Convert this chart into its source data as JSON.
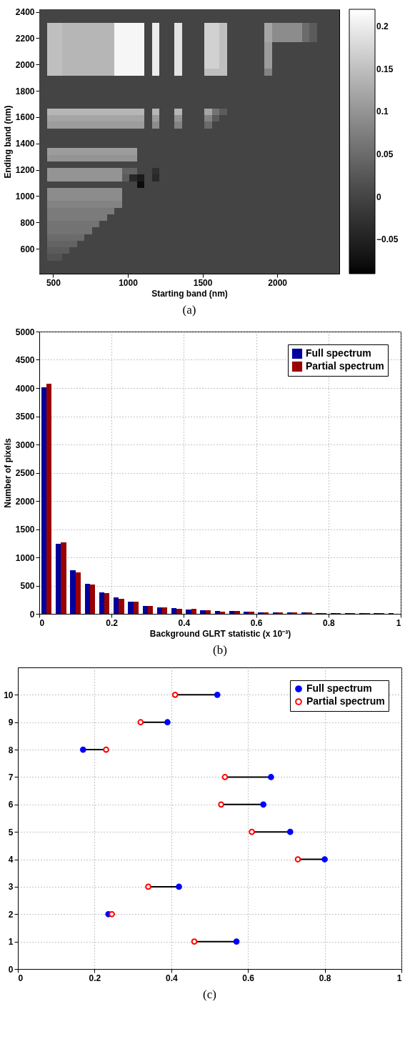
{
  "chart_data": [
    {
      "type": "heatmap",
      "xlabel": "Starting band (nm)",
      "ylabel": "Ending band (nm)",
      "annotations": [
        "(a)"
      ],
      "xlim": [
        407,
        2415
      ],
      "ylim": [
        410,
        2420
      ],
      "xticks": [
        500,
        1000,
        1500,
        2000
      ],
      "yticks": [
        600,
        800,
        1000,
        1200,
        1400,
        1600,
        1800,
        2000,
        2200,
        2400
      ],
      "clim": [
        -0.09,
        0.22
      ],
      "cticks": [
        {
          "value": -0.05,
          "label": "−0.05"
        },
        0,
        0.05,
        0.1,
        0.15,
        0.2
      ],
      "cells": [
        [
          0,
          0,
          0,
          0,
          0,
          0,
          0,
          0,
          0,
          0,
          0,
          0,
          0,
          0,
          0,
          0,
          0,
          0,
          0,
          0,
          0,
          0,
          0,
          0,
          0,
          0,
          0,
          0,
          0,
          0,
          0,
          0,
          0,
          0,
          0,
          0,
          0,
          0,
          0,
          0
        ],
        [
          0,
          0,
          0,
          0,
          0,
          0,
          0,
          0,
          0,
          0,
          0,
          0,
          0,
          0,
          0,
          0,
          0,
          0,
          0,
          0,
          0,
          0,
          0,
          0,
          0,
          0,
          0,
          0,
          0,
          0,
          0,
          0,
          0,
          0,
          0,
          0,
          0,
          0,
          0,
          0
        ],
        [
          0,
          0.15,
          0.15,
          0.14,
          0.14,
          0.14,
          0.14,
          0.14,
          0.14,
          0.14,
          0.21,
          0.21,
          0.21,
          0.21,
          0,
          0.2,
          0,
          0,
          0.19,
          0,
          0,
          0,
          0.17,
          0.17,
          0.15,
          0,
          0,
          0,
          0,
          0,
          0.12,
          0.09,
          0.09,
          0.09,
          0.09,
          0.05,
          0.03,
          0,
          0,
          0
        ],
        [
          0,
          0.15,
          0.15,
          0.14,
          0.14,
          0.14,
          0.14,
          0.14,
          0.14,
          0.14,
          0.21,
          0.21,
          0.21,
          0.21,
          0,
          0.2,
          0,
          0,
          0.19,
          0,
          0,
          0,
          0.17,
          0.17,
          0.15,
          0,
          0,
          0,
          0,
          0,
          0.12,
          0.09,
          0.09,
          0.09,
          0.09,
          0.05,
          0.03,
          0,
          0,
          0
        ],
        [
          0,
          0.15,
          0.15,
          0.14,
          0.14,
          0.14,
          0.14,
          0.14,
          0.14,
          0.14,
          0.21,
          0.21,
          0.21,
          0.21,
          0,
          0.2,
          0,
          0,
          0.19,
          0,
          0,
          0,
          0.17,
          0.17,
          0.15,
          0,
          0,
          0,
          0,
          0,
          0.12,
          0.09,
          0.09,
          0.09,
          0.09,
          0.05,
          0.03,
          0,
          0,
          0
        ],
        [
          0,
          0.15,
          0.15,
          0.14,
          0.14,
          0.14,
          0.14,
          0.14,
          0.14,
          0.14,
          0.21,
          0.21,
          0.21,
          0.21,
          0,
          0.2,
          0,
          0,
          0.19,
          0,
          0,
          0,
          0.17,
          0.17,
          0.15,
          0,
          0,
          0,
          0,
          0,
          0.11,
          0,
          0,
          0,
          0,
          0,
          0,
          0,
          0,
          0
        ],
        [
          0,
          0.15,
          0.15,
          0.14,
          0.14,
          0.14,
          0.14,
          0.14,
          0.14,
          0.14,
          0.21,
          0.21,
          0.21,
          0.21,
          0,
          0.2,
          0,
          0,
          0.19,
          0,
          0,
          0,
          0.17,
          0.17,
          0.15,
          0,
          0,
          0,
          0,
          0,
          0.11,
          0,
          0,
          0,
          0,
          0,
          0,
          0,
          0,
          0
        ],
        [
          0,
          0.15,
          0.15,
          0.14,
          0.14,
          0.14,
          0.14,
          0.14,
          0.14,
          0.14,
          0.21,
          0.21,
          0.21,
          0.21,
          0,
          0.2,
          0,
          0,
          0.19,
          0,
          0,
          0,
          0.17,
          0.17,
          0.15,
          0,
          0,
          0,
          0,
          0,
          0.11,
          0,
          0,
          0,
          0,
          0,
          0,
          0,
          0,
          0
        ],
        [
          0,
          0.15,
          0.15,
          0.14,
          0.14,
          0.14,
          0.14,
          0.14,
          0.14,
          0.14,
          0.21,
          0.21,
          0.21,
          0.21,
          0,
          0.2,
          0,
          0,
          0.19,
          0,
          0,
          0,
          0.17,
          0.17,
          0.15,
          0,
          0,
          0,
          0,
          0,
          0.11,
          0,
          0,
          0,
          0,
          0,
          0,
          0,
          0,
          0
        ],
        [
          0,
          0.15,
          0.15,
          0.14,
          0.14,
          0.14,
          0.14,
          0.14,
          0.14,
          0.14,
          0.21,
          0.21,
          0.21,
          0.21,
          0,
          0.2,
          0,
          0,
          0.19,
          0,
          0,
          0,
          0.15,
          0.15,
          0.15,
          0,
          0,
          0,
          0,
          0,
          0.08,
          0,
          0,
          0,
          0,
          0,
          0,
          0,
          0,
          0
        ],
        [
          0,
          0,
          0,
          0,
          0,
          0,
          0,
          0,
          0,
          0,
          0,
          0,
          0,
          0,
          0,
          0,
          0,
          0,
          0,
          0,
          0,
          0,
          0,
          0,
          0,
          0,
          0,
          0,
          0,
          0,
          0,
          0,
          0,
          0,
          0,
          0,
          0,
          0,
          0,
          0
        ],
        [
          0,
          0,
          0,
          0,
          0,
          0,
          0,
          0,
          0,
          0,
          0,
          0,
          0,
          0,
          0,
          0,
          0,
          0,
          0,
          0,
          0,
          0,
          0,
          0,
          0,
          0,
          0,
          0,
          0,
          0,
          0,
          0,
          0,
          0,
          0,
          0,
          0,
          0,
          0,
          0
        ],
        [
          0,
          0,
          0,
          0,
          0,
          0,
          0,
          0,
          0,
          0,
          0,
          0,
          0,
          0,
          0,
          0,
          0,
          0,
          0,
          0,
          0,
          0,
          0,
          0,
          0,
          0,
          0,
          0,
          0,
          0,
          0,
          0,
          0,
          0,
          0,
          0,
          0,
          0,
          0,
          0
        ],
        [
          0,
          0,
          0,
          0,
          0,
          0,
          0,
          0,
          0,
          0,
          0,
          0,
          0,
          0,
          0,
          0,
          0,
          0,
          0,
          0,
          0,
          0,
          0,
          0,
          0,
          0,
          0,
          0,
          0,
          0,
          0,
          0,
          0,
          0,
          0,
          0,
          0,
          0,
          0,
          0
        ],
        [
          0,
          0,
          0,
          0,
          0,
          0,
          0,
          0,
          0,
          0,
          0,
          0,
          0,
          0,
          0,
          0,
          0,
          0,
          0,
          0,
          0,
          0,
          0,
          0,
          0,
          0,
          0,
          0,
          0,
          0,
          0,
          0,
          0,
          0,
          0,
          0,
          0,
          0,
          0,
          0
        ],
        [
          0,
          0.14,
          0.14,
          0.14,
          0.14,
          0.14,
          0.14,
          0.14,
          0.14,
          0.14,
          0.14,
          0.14,
          0.14,
          0.14,
          0,
          0.14,
          0,
          0,
          0.14,
          0,
          0,
          0,
          0.12,
          0.06,
          0.03,
          0,
          0,
          0,
          0,
          0,
          0,
          0,
          0,
          0,
          0,
          0,
          0,
          0,
          0,
          0
        ],
        [
          0,
          0.12,
          0.12,
          0.12,
          0.12,
          0.12,
          0.12,
          0.12,
          0.12,
          0.12,
          0.12,
          0.12,
          0.12,
          0.12,
          0,
          0.11,
          0,
          0,
          0.1,
          0,
          0,
          0,
          0.08,
          0.03,
          0,
          0,
          0,
          0,
          0,
          0,
          0,
          0,
          0,
          0,
          0,
          0,
          0,
          0,
          0,
          0
        ],
        [
          0,
          0.11,
          0.11,
          0.11,
          0.11,
          0.11,
          0.11,
          0.11,
          0.11,
          0.11,
          0.11,
          0.11,
          0.11,
          0.11,
          0,
          0.09,
          0,
          0,
          0.08,
          0,
          0,
          0,
          0.05,
          0,
          0,
          0,
          0,
          0,
          0,
          0,
          0,
          0,
          0,
          0,
          0,
          0,
          0,
          0,
          0,
          0
        ],
        [
          0,
          0,
          0,
          0,
          0,
          0,
          0,
          0,
          0,
          0,
          0,
          0,
          0,
          0,
          0,
          0,
          0,
          0,
          0,
          0,
          0,
          0,
          0,
          0,
          0,
          0,
          0,
          0,
          0,
          0,
          0,
          0,
          0,
          0,
          0,
          0,
          0,
          0,
          0,
          0
        ],
        [
          0,
          0,
          0,
          0,
          0,
          0,
          0,
          0,
          0,
          0,
          0,
          0,
          0,
          0,
          0,
          0,
          0,
          0,
          0,
          0,
          0,
          0,
          0,
          0,
          0,
          0,
          0,
          0,
          0,
          0,
          0,
          0,
          0,
          0,
          0,
          0,
          0,
          0,
          0,
          0
        ],
        [
          0,
          0,
          0,
          0,
          0,
          0,
          0,
          0,
          0,
          0,
          0,
          0,
          0,
          0,
          0,
          0,
          0,
          0,
          0,
          0,
          0,
          0,
          0,
          0,
          0,
          0,
          0,
          0,
          0,
          0,
          0,
          0,
          0,
          0,
          0,
          0,
          0,
          0,
          0,
          0
        ],
        [
          0,
          0.11,
          0.11,
          0.11,
          0.11,
          0.11,
          0.11,
          0.11,
          0.11,
          0.11,
          0.11,
          0.11,
          0.11,
          0,
          0,
          0,
          0,
          0,
          0,
          0,
          0,
          0,
          0,
          0,
          0,
          0,
          0,
          0,
          0,
          0,
          0,
          0,
          0,
          0,
          0,
          0,
          0,
          0,
          0,
          0
        ],
        [
          0,
          0.1,
          0.1,
          0.1,
          0.1,
          0.1,
          0.1,
          0.1,
          0.1,
          0.1,
          0.1,
          0.1,
          0.1,
          0,
          0,
          0,
          0,
          0,
          0,
          0,
          0,
          0,
          0,
          0,
          0,
          0,
          0,
          0,
          0,
          0,
          0,
          0,
          0,
          0,
          0,
          0,
          0,
          0,
          0,
          0
        ],
        [
          0,
          0,
          0,
          0,
          0,
          0,
          0,
          0,
          0,
          0,
          0,
          0,
          0,
          0,
          0,
          0,
          0,
          0,
          0,
          0,
          0,
          0,
          0,
          0,
          0,
          0,
          0,
          0,
          0,
          0,
          0,
          0,
          0,
          0,
          0,
          0,
          0,
          0,
          0,
          0
        ],
        [
          0,
          0.1,
          0.1,
          0.1,
          0.1,
          0.1,
          0.1,
          0.1,
          0.1,
          0.1,
          0.1,
          0.04,
          0.04,
          0,
          0,
          -0.03,
          0,
          0,
          0,
          0,
          0,
          0,
          0,
          0,
          0,
          0,
          0,
          0,
          0,
          0,
          0,
          0,
          0,
          0,
          0,
          0,
          0,
          0,
          0,
          0
        ],
        [
          0,
          0.1,
          0.1,
          0.1,
          0.1,
          0.1,
          0.1,
          0.1,
          0.1,
          0.1,
          0.1,
          0.03,
          -0.04,
          -0.06,
          0,
          -0.04,
          0,
          0,
          0,
          0,
          0,
          0,
          0,
          0,
          0,
          0,
          0,
          0,
          0,
          0,
          0,
          0,
          0,
          0,
          0,
          0,
          0,
          0,
          0,
          0
        ],
        [
          0,
          0,
          0,
          0,
          0,
          0,
          0,
          0,
          0,
          0,
          0,
          0,
          0,
          -0.08,
          0,
          0,
          0,
          0,
          0,
          0,
          0,
          0,
          0,
          0,
          0,
          0,
          0,
          0,
          0,
          0,
          0,
          0,
          0,
          0,
          0,
          0,
          0,
          0,
          0,
          0
        ],
        [
          0,
          0.09,
          0.09,
          0.09,
          0.09,
          0.09,
          0.09,
          0.09,
          0.09,
          0.09,
          0.09,
          0,
          0,
          0,
          0,
          0,
          0,
          0,
          0,
          0,
          0,
          0,
          0,
          0,
          0,
          0,
          0,
          0,
          0,
          0,
          0,
          0,
          0,
          0,
          0,
          0,
          0,
          0,
          0,
          0
        ],
        [
          0,
          0.09,
          0.09,
          0.09,
          0.09,
          0.09,
          0.09,
          0.09,
          0.09,
          0.09,
          0.09,
          0,
          0,
          0,
          0,
          0,
          0,
          0,
          0,
          0,
          0,
          0,
          0,
          0,
          0,
          0,
          0,
          0,
          0,
          0,
          0,
          0,
          0,
          0,
          0,
          0,
          0,
          0,
          0,
          0
        ],
        [
          0,
          0.08,
          0.08,
          0.08,
          0.08,
          0.08,
          0.08,
          0.08,
          0.08,
          0.08,
          0.08,
          0,
          0,
          0,
          0,
          0,
          0,
          0,
          0,
          0,
          0,
          0,
          0,
          0,
          0,
          0,
          0,
          0,
          0,
          0,
          0,
          0,
          0,
          0,
          0,
          0,
          0,
          0,
          0,
          0
        ],
        [
          0,
          0.07,
          0.07,
          0.07,
          0.07,
          0.07,
          0.07,
          0.07,
          0.07,
          0.07,
          0,
          0,
          0,
          0,
          0,
          0,
          0,
          0,
          0,
          0,
          0,
          0,
          0,
          0,
          0,
          0,
          0,
          0,
          0,
          0,
          0,
          0,
          0,
          0,
          0,
          0,
          0,
          0,
          0,
          0
        ],
        [
          0,
          0.07,
          0.07,
          0.07,
          0.07,
          0.07,
          0.07,
          0.07,
          0.07,
          0,
          0,
          0,
          0,
          0,
          0,
          0,
          0,
          0,
          0,
          0,
          0,
          0,
          0,
          0,
          0,
          0,
          0,
          0,
          0,
          0,
          0,
          0,
          0,
          0,
          0,
          0,
          0,
          0,
          0,
          0
        ],
        [
          0,
          0.06,
          0.06,
          0.06,
          0.06,
          0.06,
          0.06,
          0.06,
          0,
          0,
          0,
          0,
          0,
          0,
          0,
          0,
          0,
          0,
          0,
          0,
          0,
          0,
          0,
          0,
          0,
          0,
          0,
          0,
          0,
          0,
          0,
          0,
          0,
          0,
          0,
          0,
          0,
          0,
          0,
          0
        ],
        [
          0,
          0.06,
          0.06,
          0.06,
          0.06,
          0.06,
          0.06,
          0,
          0,
          0,
          0,
          0,
          0,
          0,
          0,
          0,
          0,
          0,
          0,
          0,
          0,
          0,
          0,
          0,
          0,
          0,
          0,
          0,
          0,
          0,
          0,
          0,
          0,
          0,
          0,
          0,
          0,
          0,
          0,
          0
        ],
        [
          0,
          0.05,
          0.05,
          0.05,
          0.05,
          0.05,
          0,
          0,
          0,
          0,
          0,
          0,
          0,
          0,
          0,
          0,
          0,
          0,
          0,
          0,
          0,
          0,
          0,
          0,
          0,
          0,
          0,
          0,
          0,
          0,
          0,
          0,
          0,
          0,
          0,
          0,
          0,
          0,
          0,
          0
        ],
        [
          0,
          0.04,
          0.04,
          0.04,
          0.04,
          0,
          0,
          0,
          0,
          0,
          0,
          0,
          0,
          0,
          0,
          0,
          0,
          0,
          0,
          0,
          0,
          0,
          0,
          0,
          0,
          0,
          0,
          0,
          0,
          0,
          0,
          0,
          0,
          0,
          0,
          0,
          0,
          0,
          0,
          0
        ],
        [
          0,
          0.03,
          0.03,
          0.03,
          0,
          0,
          0,
          0,
          0,
          0,
          0,
          0,
          0,
          0,
          0,
          0,
          0,
          0,
          0,
          0,
          0,
          0,
          0,
          0,
          0,
          0,
          0,
          0,
          0,
          0,
          0,
          0,
          0,
          0,
          0,
          0,
          0,
          0,
          0,
          0
        ],
        [
          0,
          0.02,
          0.02,
          0,
          0,
          0,
          0,
          0,
          0,
          0,
          0,
          0,
          0,
          0,
          0,
          0,
          0,
          0,
          0,
          0,
          0,
          0,
          0,
          0,
          0,
          0,
          0,
          0,
          0,
          0,
          0,
          0,
          0,
          0,
          0,
          0,
          0,
          0,
          0,
          0
        ],
        [
          0,
          0,
          0,
          0,
          0,
          0,
          0,
          0,
          0,
          0,
          0,
          0,
          0,
          0,
          0,
          0,
          0,
          0,
          0,
          0,
          0,
          0,
          0,
          0,
          0,
          0,
          0,
          0,
          0,
          0,
          0,
          0,
          0,
          0,
          0,
          0,
          0,
          0,
          0,
          0
        ],
        [
          0,
          0,
          0,
          0,
          0,
          0,
          0,
          0,
          0,
          0,
          0,
          0,
          0,
          0,
          0,
          0,
          0,
          0,
          0,
          0,
          0,
          0,
          0,
          0,
          0,
          0,
          0,
          0,
          0,
          0,
          0,
          0,
          0,
          0,
          0,
          0,
          0,
          0,
          0,
          0
        ]
      ]
    },
    {
      "type": "bar",
      "xlabel": "Background GLRT statistic (x 10⁻³)",
      "ylabel": "Number of pixels",
      "annotations": [
        "(b)"
      ],
      "x": [
        0.02,
        0.06,
        0.1,
        0.14,
        0.18,
        0.22,
        0.26,
        0.3,
        0.34,
        0.38,
        0.42,
        0.46,
        0.5,
        0.54,
        0.58,
        0.62,
        0.66,
        0.7,
        0.74,
        0.78,
        0.82,
        0.86,
        0.9,
        0.94,
        0.98
      ],
      "xlim": [
        0,
        1
      ],
      "xticks": [
        0,
        0.2,
        0.4,
        0.6,
        0.8,
        1
      ],
      "ylim": [
        0,
        5000
      ],
      "yticks": [
        0,
        500,
        1000,
        1500,
        2000,
        2500,
        3000,
        3500,
        4000,
        4500,
        5000
      ],
      "grid": true,
      "legend": "top right",
      "series": [
        {
          "name": "Full spectrum",
          "color": "#00009c",
          "values": [
            4010,
            1245,
            770,
            530,
            380,
            285,
            210,
            140,
            110,
            95,
            80,
            60,
            50,
            55,
            40,
            30,
            25,
            22,
            20,
            18,
            15,
            10,
            8,
            8,
            15
          ]
        },
        {
          "name": "Partial spectrum",
          "color": "#990000",
          "values": [
            4080,
            1260,
            740,
            515,
            365,
            270,
            215,
            140,
            110,
            85,
            85,
            60,
            40,
            55,
            35,
            30,
            28,
            25,
            20,
            18,
            12,
            10,
            10,
            8,
            5
          ]
        }
      ]
    },
    {
      "type": "scatter",
      "annotations": [
        "(c)"
      ],
      "xlim": [
        0,
        1
      ],
      "xticks": [
        0,
        0.2,
        0.4,
        0.6,
        0.8,
        1
      ],
      "ylim": [
        0,
        11
      ],
      "yticks": [
        0,
        1,
        2,
        3,
        4,
        5,
        6,
        7,
        8,
        9,
        10
      ],
      "grid": true,
      "legend": "top right",
      "marker": "circle",
      "series": [
        {
          "name": "Full spectrum",
          "color": "#0000ff",
          "x": [
            0.57,
            0.236,
            0.42,
            0.8,
            0.71,
            0.64,
            0.66,
            0.17,
            0.39,
            0.52
          ],
          "values": [
            1,
            2,
            3,
            4,
            5,
            6,
            7,
            8,
            9,
            10
          ]
        },
        {
          "name": "Partial spectrum",
          "color": "#ff0000",
          "x": [
            0.46,
            0.245,
            0.34,
            0.73,
            0.61,
            0.53,
            0.54,
            0.23,
            0.32,
            0.41
          ],
          "values": [
            1,
            2,
            3,
            4,
            5,
            6,
            7,
            8,
            9,
            10
          ]
        }
      ]
    }
  ]
}
